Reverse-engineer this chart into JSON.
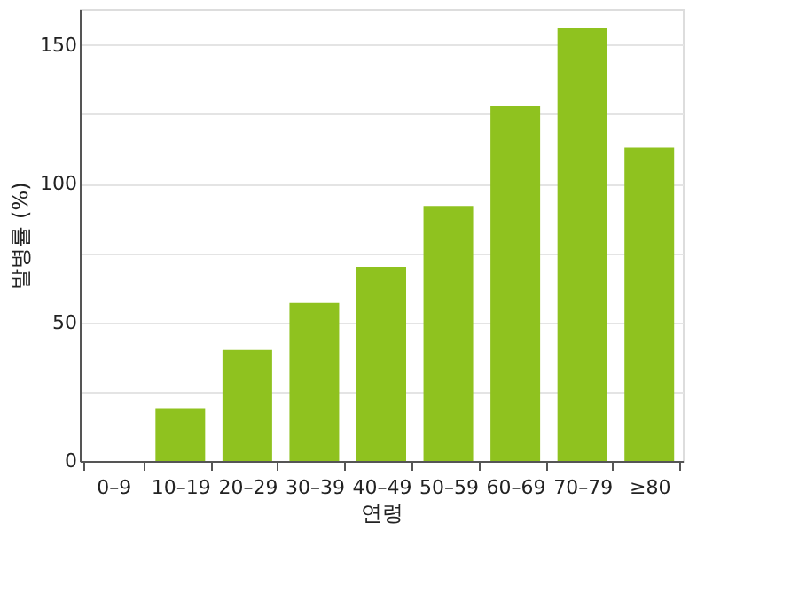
{
  "chart_data": {
    "type": "bar",
    "xlabel": "연령",
    "ylabel": "발병률 (%)",
    "categories": [
      "0–9",
      "10–19",
      "20–29",
      "30–39",
      "40–49",
      "50–59",
      "60–69",
      "70–79",
      "≥80"
    ],
    "values": [
      0,
      19,
      40,
      57,
      70,
      92,
      128,
      156,
      113
    ],
    "color": "#8fc21f",
    "ylim": [
      0,
      163
    ],
    "yticks": [
      0,
      {
        "value": 25,
        "label": null
      },
      50,
      {
        "value": 75,
        "label": null
      },
      100,
      {
        "value": 125,
        "label": null
      },
      150
    ],
    "grid": "y"
  }
}
